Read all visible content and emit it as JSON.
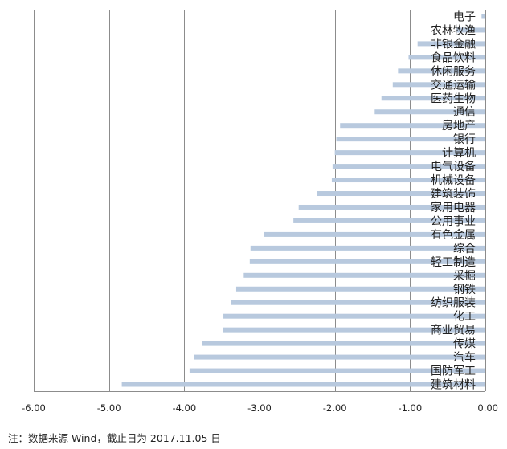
{
  "chart_data": {
    "type": "bar",
    "orientation": "horizontal",
    "categories": [
      "电子",
      "农林牧渔",
      "非银金融",
      "食品饮料",
      "休闲服务",
      "交通运输",
      "医药生物",
      "通信",
      "房地产",
      "银行",
      "计算机",
      "电气设备",
      "机械设备",
      "建筑装饰",
      "家用电器",
      "公用事业",
      "有色金属",
      "综合",
      "轻工制造",
      "采掘",
      "钢铁",
      "纺织服装",
      "化工",
      "商业贸易",
      "传媒",
      "汽车",
      "国防军工",
      "建筑材料"
    ],
    "values": [
      -0.05,
      -0.38,
      -0.9,
      -1.02,
      -1.16,
      -1.23,
      -1.38,
      -1.47,
      -1.93,
      -1.98,
      -2.0,
      -2.03,
      -2.04,
      -2.24,
      -2.48,
      -2.55,
      -2.94,
      -3.12,
      -3.13,
      -3.21,
      -3.31,
      -3.38,
      -3.48,
      -3.49,
      -3.76,
      -3.87,
      -3.93,
      -4.83
    ],
    "xlim": [
      -6.0,
      0.0
    ],
    "x_ticks": [
      "-6.00",
      "-5.00",
      "-4.00",
      "-3.00",
      "-2.00",
      "-1.00",
      "0.00"
    ],
    "grid": true,
    "bar_color": "#b8c9de",
    "grid_color": "#8c8c8c"
  },
  "note": "注：数据来源 Wind，截止日为 2017.11.05 日"
}
